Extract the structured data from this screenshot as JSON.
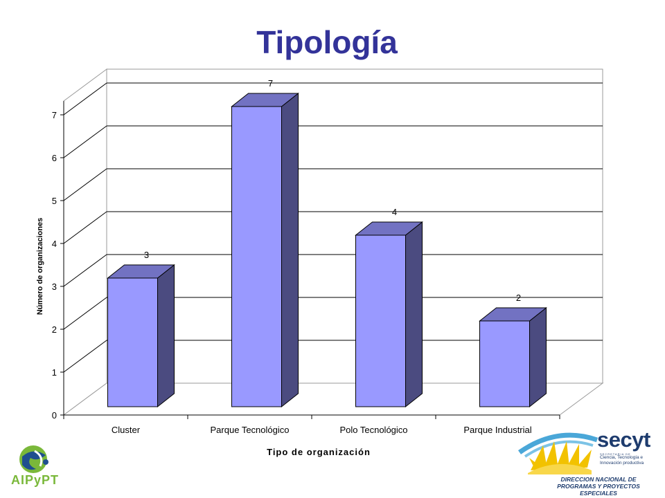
{
  "slide": {
    "title": "Tipología"
  },
  "chart_data": {
    "type": "bar",
    "title": "",
    "xlabel": "Tipo de organización",
    "ylabel": "Número de organizaciones",
    "categories": [
      "Cluster",
      "Parque Tecnológico",
      "Polo Tecnológico",
      "Parque Industrial"
    ],
    "series": [
      {
        "values": [
          3,
          7,
          4,
          2
        ]
      }
    ],
    "data_labels": [
      "3",
      "7",
      "4",
      "2"
    ],
    "ylim": [
      0,
      7
    ],
    "yticks": [
      "0",
      "1",
      "2",
      "3",
      "4",
      "5",
      "6",
      "7"
    ],
    "grid": true,
    "style": "3d-column",
    "colors": {
      "bar_front": "#9999ff",
      "bar_side": "#4b4b80",
      "bar_top": "#7272c2",
      "title": "#333399"
    }
  },
  "logos": {
    "left": {
      "text": "AIPyPT",
      "icon": "aipypt-globe-logo"
    },
    "right": {
      "brand": "secyt",
      "small_caps": "SECRETARIA DE",
      "subtitle_lines": [
        "Ciencia, Tecnología e",
        "Innovación productiva"
      ],
      "department_lines": [
        "DIRECCION NACIONAL DE",
        "PROGRAMAS Y PROYECTOS ESPECIALES"
      ]
    }
  }
}
